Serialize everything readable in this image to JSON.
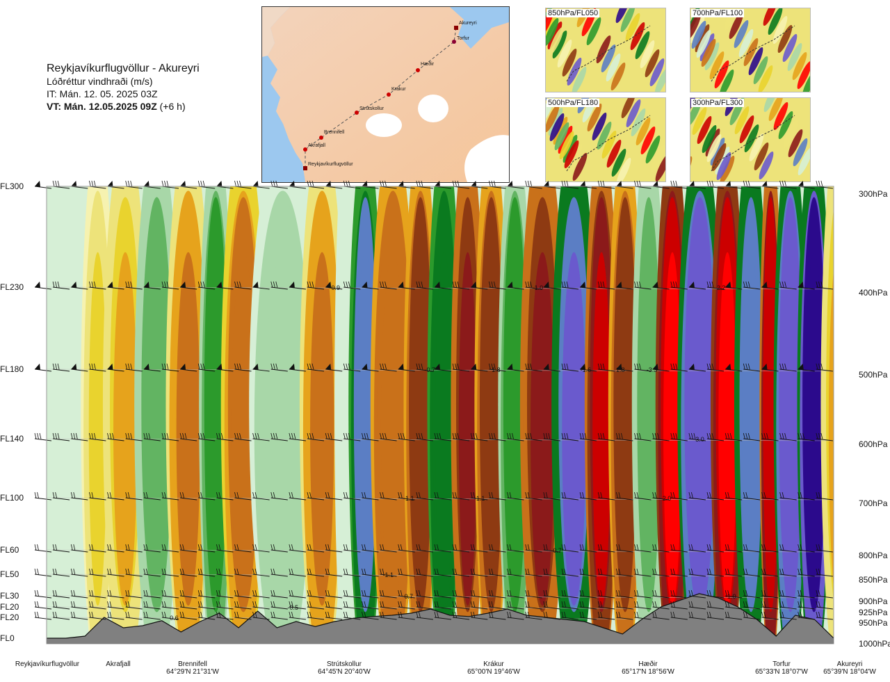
{
  "title": {
    "route": "Reykjavíkurflugvöllur - Akureyri",
    "parameter": "Lóðréttur vindhraði (m/s)",
    "init_time": "IT: Mán. 12. 05. 2025 03Z",
    "valid_time": "VT: Mán. 12.05.2025 09Z",
    "lead": "(+6 h)"
  },
  "map": {
    "points": [
      "Akureyri",
      "Torfur",
      "Hæðir",
      "Krákur",
      "Strútskollur",
      "Brennifell",
      "Akrafjall",
      "Reykjavíkurflugvöllur"
    ]
  },
  "thumbnails": [
    {
      "label": "850hPa/FL050"
    },
    {
      "label": "700hPa/FL100"
    },
    {
      "label": "500hPa/FL180"
    },
    {
      "label": "300hPa/FL300"
    }
  ],
  "levels": [
    {
      "fl": "FL300",
      "hpa": "300hPa"
    },
    {
      "fl": "FL230",
      "hpa": "400hPa"
    },
    {
      "fl": "FL180",
      "hpa": "500hPa"
    },
    {
      "fl": "FL140",
      "hpa": "600hPa"
    },
    {
      "fl": "FL100",
      "hpa": "700hPa"
    },
    {
      "fl": "FL60",
      "hpa": "800hPa"
    },
    {
      "fl": "FL50",
      "hpa": "850hPa"
    },
    {
      "fl": "FL30",
      "hpa": "900hPa"
    },
    {
      "fl": "FL20",
      "hpa": "925hPa"
    },
    {
      "fl": "FL20",
      "hpa": "950hPa"
    },
    {
      "fl": "FL0",
      "hpa": "1000hPa"
    }
  ],
  "locations": [
    {
      "name": "Reykjavíkurflugvöllur",
      "coord": ""
    },
    {
      "name": "Akrafjall",
      "coord": ""
    },
    {
      "name": "Brennifell",
      "coord": "64°29'N 21°31'W"
    },
    {
      "name": "Strútskollur",
      "coord": "64°45'N 20°40'W"
    },
    {
      "name": "Krákur",
      "coord": "65°00'N 19°46'W"
    },
    {
      "name": "Hæðir",
      "coord": "65°17'N 18°56'W"
    },
    {
      "name": "Torfur",
      "coord": "65°33'N 18°07'W"
    },
    {
      "name": "Akureyri",
      "coord": "65°39'N 18°04'W"
    }
  ],
  "chart_data": {
    "type": "heatmap",
    "x_axis": "route position",
    "y_axis": "pressure level (hPa)",
    "y_levels_hpa": [
      300,
      400,
      500,
      600,
      700,
      800,
      850,
      900,
      925,
      950,
      1000
    ],
    "bands": [
      {
        "position": 0.0,
        "value": -0.1
      },
      {
        "position": 0.05,
        "value": 0.2
      },
      {
        "position": 0.08,
        "value": 0.3
      },
      {
        "position": 0.12,
        "value": -0.3
      },
      {
        "position": 0.16,
        "value": 0.5
      },
      {
        "position": 0.2,
        "value": -0.5
      },
      {
        "position": 0.23,
        "value": 0.7
      },
      {
        "position": 0.27,
        "value": -0.2
      },
      {
        "position": 0.33,
        "value": 0.5
      },
      {
        "position": 0.37,
        "value": -0.1
      },
      {
        "position": 0.39,
        "value": -1.2
      },
      {
        "position": 0.42,
        "value": 0.9
      },
      {
        "position": 0.46,
        "value": 1.4
      },
      {
        "position": 0.49,
        "value": -1.0
      },
      {
        "position": 0.52,
        "value": 1.5
      },
      {
        "position": 0.55,
        "value": 1.2
      },
      {
        "position": 0.58,
        "value": -0.5
      },
      {
        "position": 0.61,
        "value": 1.5
      },
      {
        "position": 0.65,
        "value": -1.6
      },
      {
        "position": 0.69,
        "value": 2.0
      },
      {
        "position": 0.72,
        "value": 1.4
      },
      {
        "position": 0.75,
        "value": -0.3
      },
      {
        "position": 0.78,
        "value": 3.0
      },
      {
        "position": 0.81,
        "value": -1.8
      },
      {
        "position": 0.85,
        "value": 3.0
      },
      {
        "position": 0.88,
        "value": -1.5
      },
      {
        "position": 0.91,
        "value": 2.6
      },
      {
        "position": 0.93,
        "value": -1.8
      },
      {
        "position": 0.96,
        "value": -2.6
      },
      {
        "position": 0.99,
        "value": 0.3
      }
    ],
    "annotations": [
      {
        "text": "-0.9",
        "x": 0.366,
        "level_hpa": 400
      },
      {
        "text": "-1.0",
        "x": 0.624,
        "level_hpa": 400
      },
      {
        "text": "2.2",
        "x": 0.857,
        "level_hpa": 400
      },
      {
        "text": "-0.7",
        "x": 0.487,
        "level_hpa": 500
      },
      {
        "text": "1.8",
        "x": 0.571,
        "level_hpa": 500
      },
      {
        "text": "-1.6",
        "x": 0.685,
        "level_hpa": 500
      },
      {
        "text": "1.8",
        "x": 0.729,
        "level_hpa": 500
      },
      {
        "text": "-3.3",
        "x": 0.769,
        "level_hpa": 500
      },
      {
        "text": "3.0",
        "x": 0.83,
        "level_hpa": 600
      },
      {
        "text": "-1.1",
        "x": 0.46,
        "level_hpa": 700
      },
      {
        "text": "-1.1",
        "x": 0.55,
        "level_hpa": 700
      },
      {
        "text": "2.0",
        "x": 0.788,
        "level_hpa": 700
      },
      {
        "text": "0.7",
        "x": 0.649,
        "level_hpa": 800
      },
      {
        "text": "-1.1",
        "x": 0.434,
        "level_hpa": 850
      },
      {
        "text": "0.7",
        "x": 0.46,
        "level_hpa": 900
      },
      {
        "text": "-1.0",
        "x": 0.869,
        "level_hpa": 900
      },
      {
        "text": "-0.5",
        "x": 0.313,
        "level_hpa": 925
      },
      {
        "text": "0.6",
        "x": 0.162,
        "level_hpa": 950
      }
    ],
    "terrain_hpa": [
      1000,
      1000,
      995,
      950,
      975,
      970,
      958,
      985,
      960,
      940,
      975,
      935,
      975,
      960,
      972,
      960,
      952,
      948,
      945,
      940,
      930,
      945,
      948,
      940,
      930,
      945,
      950,
      955,
      960,
      975,
      990,
      955,
      925,
      910,
      895,
      905,
      925,
      955,
      995,
      945,
      955,
      1000
    ],
    "color_scale": {
      "levels": [
        -3,
        -2,
        -1.5,
        -1,
        -0.5,
        -0.3,
        -0.2,
        -0.1,
        0,
        0.1,
        0.2,
        0.3,
        0.5,
        1,
        1.5,
        2,
        3
      ],
      "colors": [
        "#2b0a8c",
        "#6a5acd",
        "#5b7ec4",
        "#0a7a1f",
        "#2c9a2c",
        "#62b462",
        "#a8d7a8",
        "#d6efd6",
        "#f6f2b0",
        "#ede37a",
        "#e9d32e",
        "#e6a31c",
        "#c9711a",
        "#8e3a12",
        "#8b1a1a",
        "#cc0000",
        "#ff0000"
      ]
    },
    "barb_rows_hpa": [
      300,
      400,
      500,
      600,
      700,
      800,
      850,
      900,
      925,
      950
    ]
  }
}
